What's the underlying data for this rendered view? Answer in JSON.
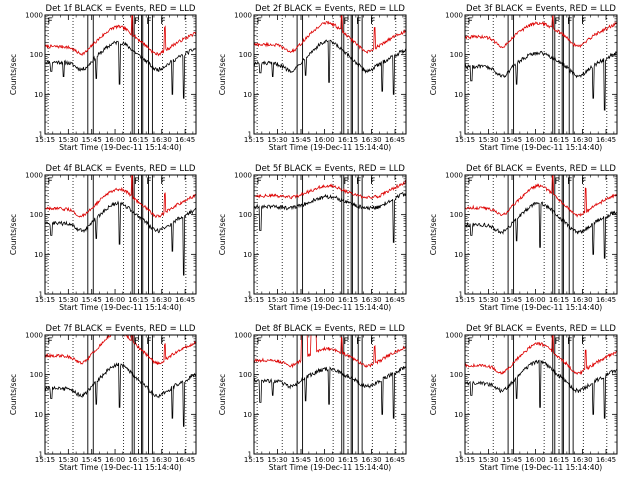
{
  "chart_data": {
    "type": "line",
    "layout": "3x3 grid",
    "x_axis": {
      "label": "Start Time (19-Dec-11 15:14:40)",
      "tick_labels": [
        "15:15",
        "15:30",
        "15:45",
        "16:00",
        "16:15",
        "16:30",
        "16:45"
      ],
      "range": [
        "15:15",
        "16:52"
      ]
    },
    "y_axis": {
      "label": "Counts/sec",
      "scale": "log",
      "range": [
        1,
        1000
      ],
      "tick_labels": [
        "1",
        "10",
        "100",
        "1000"
      ]
    },
    "grid": false,
    "colors": {
      "events": "#000000",
      "lld": "#dd0000",
      "axes": "#000000"
    },
    "vertical_solid_lines_min": [
      27.5,
      31.0,
      56.0,
      57.3,
      62.0,
      62.8,
      66.5,
      69.0
    ],
    "vertical_dotted_lines_min": [
      2.0,
      18.0,
      50.5,
      60.0,
      75.5,
      90.5
    ],
    "panels": [
      {
        "title": "Det 1f BLACK = Events, RED = LLD",
        "flags": [
          "F",
          "F",
          "F",
          "F"
        ],
        "events_base": 65,
        "lld_base": 160,
        "bump_center": 47,
        "bump": 0.5,
        "dip": 0.2,
        "events_spikes": [
          [
            4,
            38
          ],
          [
            12,
            28
          ],
          [
            33,
            25
          ],
          [
            48,
            18
          ],
          [
            82,
            10
          ],
          [
            89,
            8
          ]
        ],
        "lld_spikes": [
          [
            56,
            0.5
          ],
          [
            77,
            0.6
          ]
        ],
        "lld_jumps": []
      },
      {
        "title": "Det 2f BLACK = Events, RED = LLD",
        "flags": [
          "F",
          "F",
          "F",
          "F"
        ],
        "events_base": 60,
        "lld_base": 180,
        "bump_center": 47,
        "bump": 0.55,
        "dip": 0.2,
        "events_spikes": [
          [
            4,
            35
          ],
          [
            12,
            28
          ],
          [
            33,
            30
          ],
          [
            48,
            20
          ],
          [
            82,
            12
          ],
          [
            89,
            10
          ]
        ],
        "lld_spikes": [
          [
            56,
            0.4
          ],
          [
            77,
            0.5
          ]
        ],
        "lld_jumps": []
      },
      {
        "title": "Det 3f BLACK = Events, RED = LLD",
        "flags": [
          "F",
          "F",
          "F",
          "F"
        ],
        "events_base": 50,
        "lld_base": 280,
        "bump_center": 47,
        "bump": 0.35,
        "dip": 0.25,
        "events_spikes": [
          [
            4,
            22
          ],
          [
            33,
            18
          ],
          [
            82,
            8
          ],
          [
            89,
            4
          ]
        ],
        "lld_spikes": [
          [
            56,
            0.3
          ]
        ],
        "lld_jumps": []
      },
      {
        "title": "Det 4f BLACK = Events, RED = LLD",
        "flags": [
          "F",
          "F",
          "F",
          "F"
        ],
        "events_base": 60,
        "lld_base": 140,
        "bump_center": 47,
        "bump": 0.5,
        "dip": 0.2,
        "events_spikes": [
          [
            4,
            30
          ],
          [
            33,
            25
          ],
          [
            48,
            18
          ],
          [
            82,
            12
          ],
          [
            89,
            3
          ]
        ],
        "lld_spikes": [
          [
            56,
            0.6
          ],
          [
            77,
            0.5
          ]
        ],
        "lld_jumps": []
      },
      {
        "title": "Det 5f BLACK = Events, RED = LLD",
        "flags": [
          "F",
          "F",
          "F",
          "F"
        ],
        "events_base": 160,
        "lld_base": 300,
        "bump_center": 47,
        "bump": 0.25,
        "dip": 0.05,
        "events_spikes": [
          [
            4,
            40
          ],
          [
            89,
            20
          ]
        ],
        "lld_spikes": [],
        "lld_jumps": []
      },
      {
        "title": "Det 6f BLACK = Events, RED = LLD",
        "flags": [
          "F",
          "F",
          "F",
          "F"
        ],
        "events_base": 55,
        "lld_base": 150,
        "bump_center": 47,
        "bump": 0.55,
        "dip": 0.2,
        "events_spikes": [
          [
            4,
            30
          ],
          [
            33,
            22
          ],
          [
            48,
            15
          ],
          [
            82,
            10
          ],
          [
            89,
            8
          ]
        ],
        "lld_spikes": [
          [
            56,
            0.5
          ],
          [
            77,
            0.6
          ]
        ],
        "lld_jumps": []
      },
      {
        "title": "Det 7f BLACK = Events, RED = LLD",
        "flags": [
          "F",
          "F",
          "F",
          "F"
        ],
        "events_base": 45,
        "lld_base": 300,
        "bump_center": 47,
        "bump": 0.6,
        "dip": 0.2,
        "events_spikes": [
          [
            4,
            25
          ],
          [
            33,
            18
          ],
          [
            48,
            15
          ],
          [
            82,
            8
          ],
          [
            89,
            5
          ]
        ],
        "lld_spikes": [
          [
            56,
            0.5
          ],
          [
            77,
            0.4
          ]
        ],
        "lld_jumps": []
      },
      {
        "title": "Det 8f BLACK = Events, RED = LLD",
        "flags": [
          "F",
          "F",
          "F",
          "F"
        ],
        "events_base": 70,
        "lld_base": 230,
        "bump_center": 47,
        "bump": 0.3,
        "dip": 0.15,
        "events_spikes": [
          [
            4,
            20
          ],
          [
            12,
            30
          ],
          [
            33,
            22
          ],
          [
            48,
            18
          ],
          [
            82,
            10
          ],
          [
            89,
            8
          ]
        ],
        "lld_spikes": [
          [
            56,
            0.4
          ],
          [
            77,
            0.4
          ]
        ],
        "lld_jumps": [
          [
            30,
            34,
            1000
          ],
          [
            36,
            40,
            1000
          ]
        ]
      },
      {
        "title": "Det 9f BLACK = Events, RED = LLD",
        "flags": [
          "F",
          "F",
          "F",
          "F"
        ],
        "events_base": 60,
        "lld_base": 170,
        "bump_center": 47,
        "bump": 0.55,
        "dip": 0.2,
        "events_spikes": [
          [
            4,
            30
          ],
          [
            33,
            25
          ],
          [
            48,
            15
          ],
          [
            82,
            10
          ],
          [
            89,
            8
          ]
        ],
        "lld_spikes": [
          [
            56,
            0.5
          ],
          [
            77,
            0.5
          ]
        ],
        "lld_jumps": []
      }
    ]
  }
}
